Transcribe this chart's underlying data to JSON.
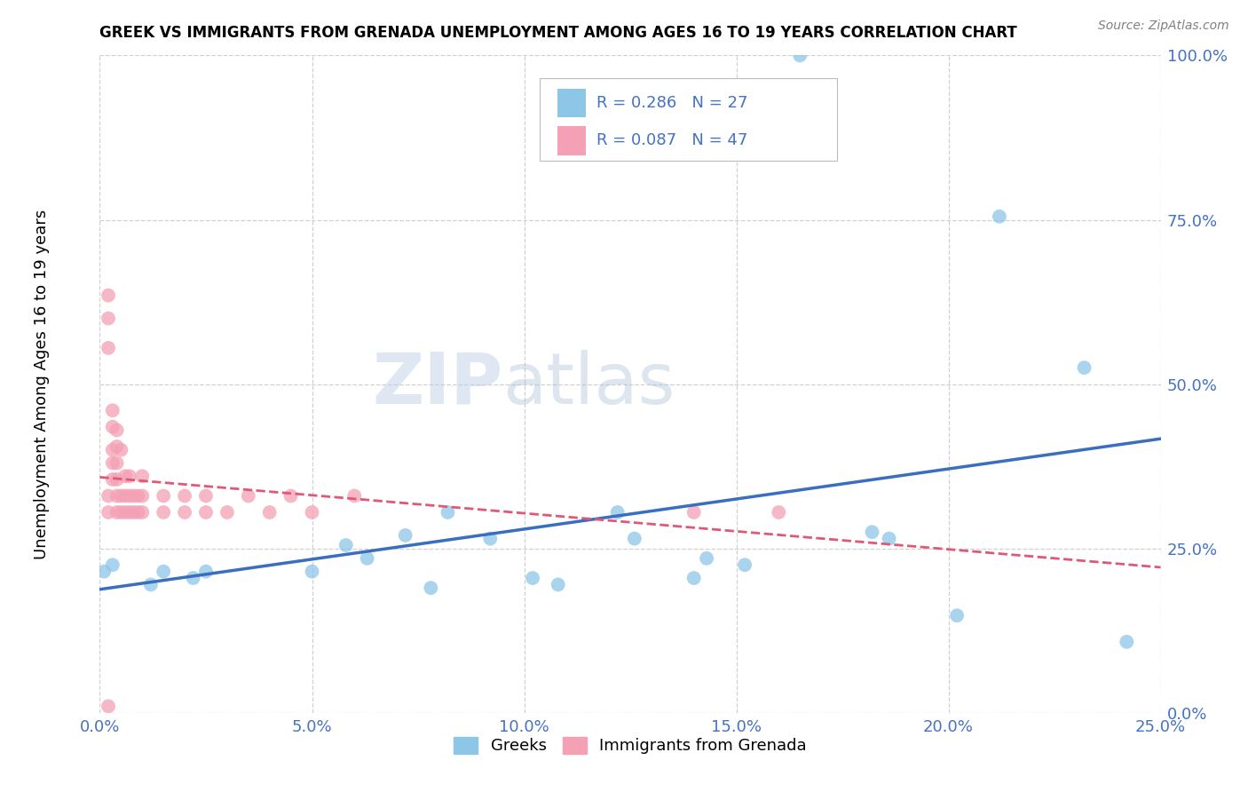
{
  "title": "GREEK VS IMMIGRANTS FROM GRENADA UNEMPLOYMENT AMONG AGES 16 TO 19 YEARS CORRELATION CHART",
  "source": "Source: ZipAtlas.com",
  "ylabel": "Unemployment Among Ages 16 to 19 years",
  "xlim": [
    0.0,
    0.25
  ],
  "ylim": [
    0.0,
    1.0
  ],
  "xticks": [
    0.0,
    0.05,
    0.1,
    0.15,
    0.2,
    0.25
  ],
  "yticks": [
    0.0,
    0.25,
    0.5,
    0.75,
    1.0
  ],
  "xtick_labels": [
    "0.0%",
    "5.0%",
    "10.0%",
    "15.0%",
    "20.0%",
    "25.0%"
  ],
  "ytick_labels": [
    "0.0%",
    "25.0%",
    "50.0%",
    "75.0%",
    "100.0%"
  ],
  "blue_color": "#8EC6E8",
  "pink_color": "#F4A0B5",
  "blue_line_color": "#3A6FBF",
  "pink_line_color": "#E05878",
  "blue_R": 0.286,
  "blue_N": 27,
  "pink_R": 0.087,
  "pink_N": 47,
  "watermark_zip": "ZIP",
  "watermark_atlas": "atlas",
  "legend_label_blue": "Greeks",
  "legend_label_pink": "Immigrants from Grenada",
  "blue_points_x": [
    0.001,
    0.003,
    0.012,
    0.015,
    0.022,
    0.025,
    0.05,
    0.058,
    0.063,
    0.072,
    0.078,
    0.082,
    0.092,
    0.102,
    0.108,
    0.122,
    0.126,
    0.14,
    0.143,
    0.152,
    0.165,
    0.182,
    0.186,
    0.202,
    0.212,
    0.232,
    0.242
  ],
  "blue_points_y": [
    0.215,
    0.225,
    0.195,
    0.215,
    0.205,
    0.215,
    0.215,
    0.255,
    0.235,
    0.27,
    0.19,
    0.305,
    0.265,
    0.205,
    0.195,
    0.305,
    0.265,
    0.205,
    0.235,
    0.225,
    1.0,
    0.275,
    0.265,
    0.148,
    0.755,
    0.525,
    0.108
  ],
  "pink_points_x": [
    0.002,
    0.002,
    0.002,
    0.002,
    0.002,
    0.002,
    0.003,
    0.003,
    0.003,
    0.003,
    0.003,
    0.004,
    0.004,
    0.004,
    0.004,
    0.004,
    0.004,
    0.005,
    0.005,
    0.005,
    0.006,
    0.006,
    0.006,
    0.007,
    0.007,
    0.007,
    0.008,
    0.008,
    0.009,
    0.009,
    0.01,
    0.01,
    0.01,
    0.015,
    0.015,
    0.02,
    0.02,
    0.025,
    0.025,
    0.03,
    0.035,
    0.04,
    0.045,
    0.05,
    0.06,
    0.14,
    0.16
  ],
  "pink_points_y": [
    0.555,
    0.6,
    0.635,
    0.01,
    0.305,
    0.33,
    0.355,
    0.38,
    0.4,
    0.435,
    0.46,
    0.305,
    0.33,
    0.355,
    0.38,
    0.405,
    0.43,
    0.305,
    0.33,
    0.4,
    0.305,
    0.33,
    0.36,
    0.305,
    0.33,
    0.36,
    0.305,
    0.33,
    0.305,
    0.33,
    0.305,
    0.33,
    0.36,
    0.305,
    0.33,
    0.305,
    0.33,
    0.305,
    0.33,
    0.305,
    0.33,
    0.305,
    0.33,
    0.305,
    0.33,
    0.305,
    0.305
  ],
  "background_color": "#ffffff",
  "grid_color": "#d0d0d0"
}
